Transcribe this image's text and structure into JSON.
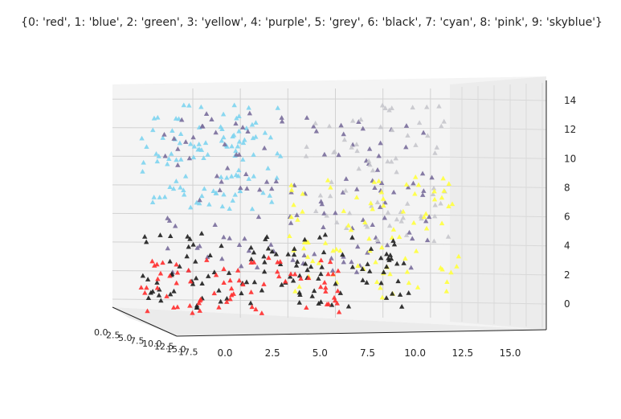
{
  "chart_data": {
    "type": "scatter",
    "projection": "3d",
    "title": "{0: 'red', 1: 'blue', 2: 'green', 3: 'yellow', 4: 'purple', 5: 'grey', 6: 'black', 7: 'cyan', 8: 'pink', 9: 'skyblue'}",
    "marker": "triangle",
    "grid": true,
    "x_axis": {
      "ticks": [
        "0.0",
        "2.5",
        "5.0",
        "7.5",
        "10.0",
        "12.5",
        "15.0"
      ],
      "range": [
        -2,
        17
      ]
    },
    "y_axis": {
      "ticks": [
        "0.0",
        "2.5",
        "5.0",
        "7.5",
        "10.0",
        "12.5",
        "15.0",
        "17.5"
      ],
      "range": [
        0,
        18
      ]
    },
    "z_axis": {
      "ticks": [
        "0",
        "2",
        "4",
        "6",
        "8",
        "10",
        "12",
        "14"
      ],
      "range": [
        -1.5,
        15
      ]
    },
    "series": [
      {
        "label": "0",
        "color": "#ff3030"
      },
      {
        "label": "3",
        "color": "#ffff40"
      },
      {
        "label": "4",
        "color": "#7b6f9c"
      },
      {
        "label": "5",
        "color": "#c7c7cc"
      },
      {
        "label": "6",
        "color": "#222222"
      },
      {
        "label": "9",
        "color": "#7fd4ef"
      }
    ]
  }
}
